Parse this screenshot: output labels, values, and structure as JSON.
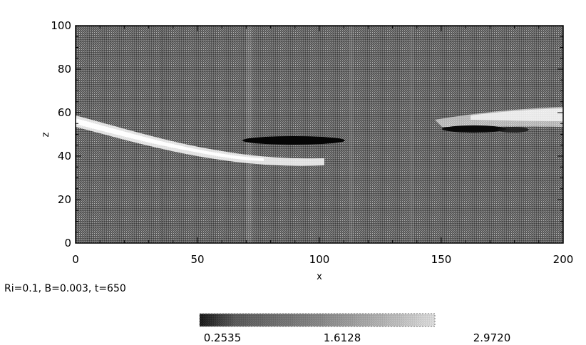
{
  "chart_data": {
    "type": "heatmap",
    "xlabel": "x",
    "ylabel": "z",
    "xlim": [
      0,
      200
    ],
    "ylim": [
      0,
      100
    ],
    "x_ticks": [
      "0",
      "50",
      "100",
      "150",
      "200"
    ],
    "y_ticks": [
      "0",
      "20",
      "40",
      "60",
      "80",
      "100"
    ],
    "caption": "Ri=0.1, B=0.003, t=650",
    "colorscale": "grayscale",
    "colorbar": {
      "range": [
        0.2535,
        2.972
      ],
      "tick_labels": [
        "0.2535",
        "1.6128",
        "2.9720"
      ]
    }
  }
}
